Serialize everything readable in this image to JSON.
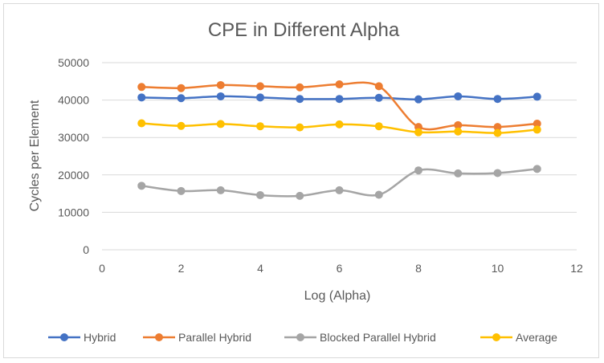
{
  "chart_data": {
    "type": "line",
    "title": "CPE in Different Alpha",
    "xlabel": "Log (Alpha)",
    "ylabel": "Cycles per Element",
    "xlim": [
      0,
      12
    ],
    "ylim": [
      0,
      50000
    ],
    "x_ticks": [
      0,
      2,
      4,
      6,
      8,
      10,
      12
    ],
    "y_ticks": [
      0,
      10000,
      20000,
      30000,
      40000,
      50000
    ],
    "grid": "horizontal",
    "legend_position": "bottom",
    "x": [
      1,
      2,
      3,
      4,
      5,
      6,
      7,
      8,
      9,
      10,
      11
    ],
    "series": [
      {
        "name": "Hybrid",
        "color": "#4472C4",
        "values": [
          40700,
          40500,
          41000,
          40700,
          40300,
          40300,
          40600,
          40200,
          41000,
          40300,
          40900
        ]
      },
      {
        "name": "Parallel Hybrid",
        "color": "#ED7D31",
        "values": [
          43500,
          43200,
          44000,
          43700,
          43400,
          44200,
          43700,
          32800,
          33300,
          32800,
          33700
        ]
      },
      {
        "name": "Blocked Parallel Hybrid",
        "color": "#A5A5A5",
        "values": [
          17100,
          15700,
          15900,
          14600,
          14400,
          15900,
          14700,
          21200,
          20400,
          20500,
          21600
        ]
      },
      {
        "name": "Average",
        "color": "#FFC000",
        "values": [
          33800,
          33100,
          33600,
          33000,
          32700,
          33500,
          33000,
          31400,
          31600,
          31200,
          32100
        ]
      }
    ]
  }
}
